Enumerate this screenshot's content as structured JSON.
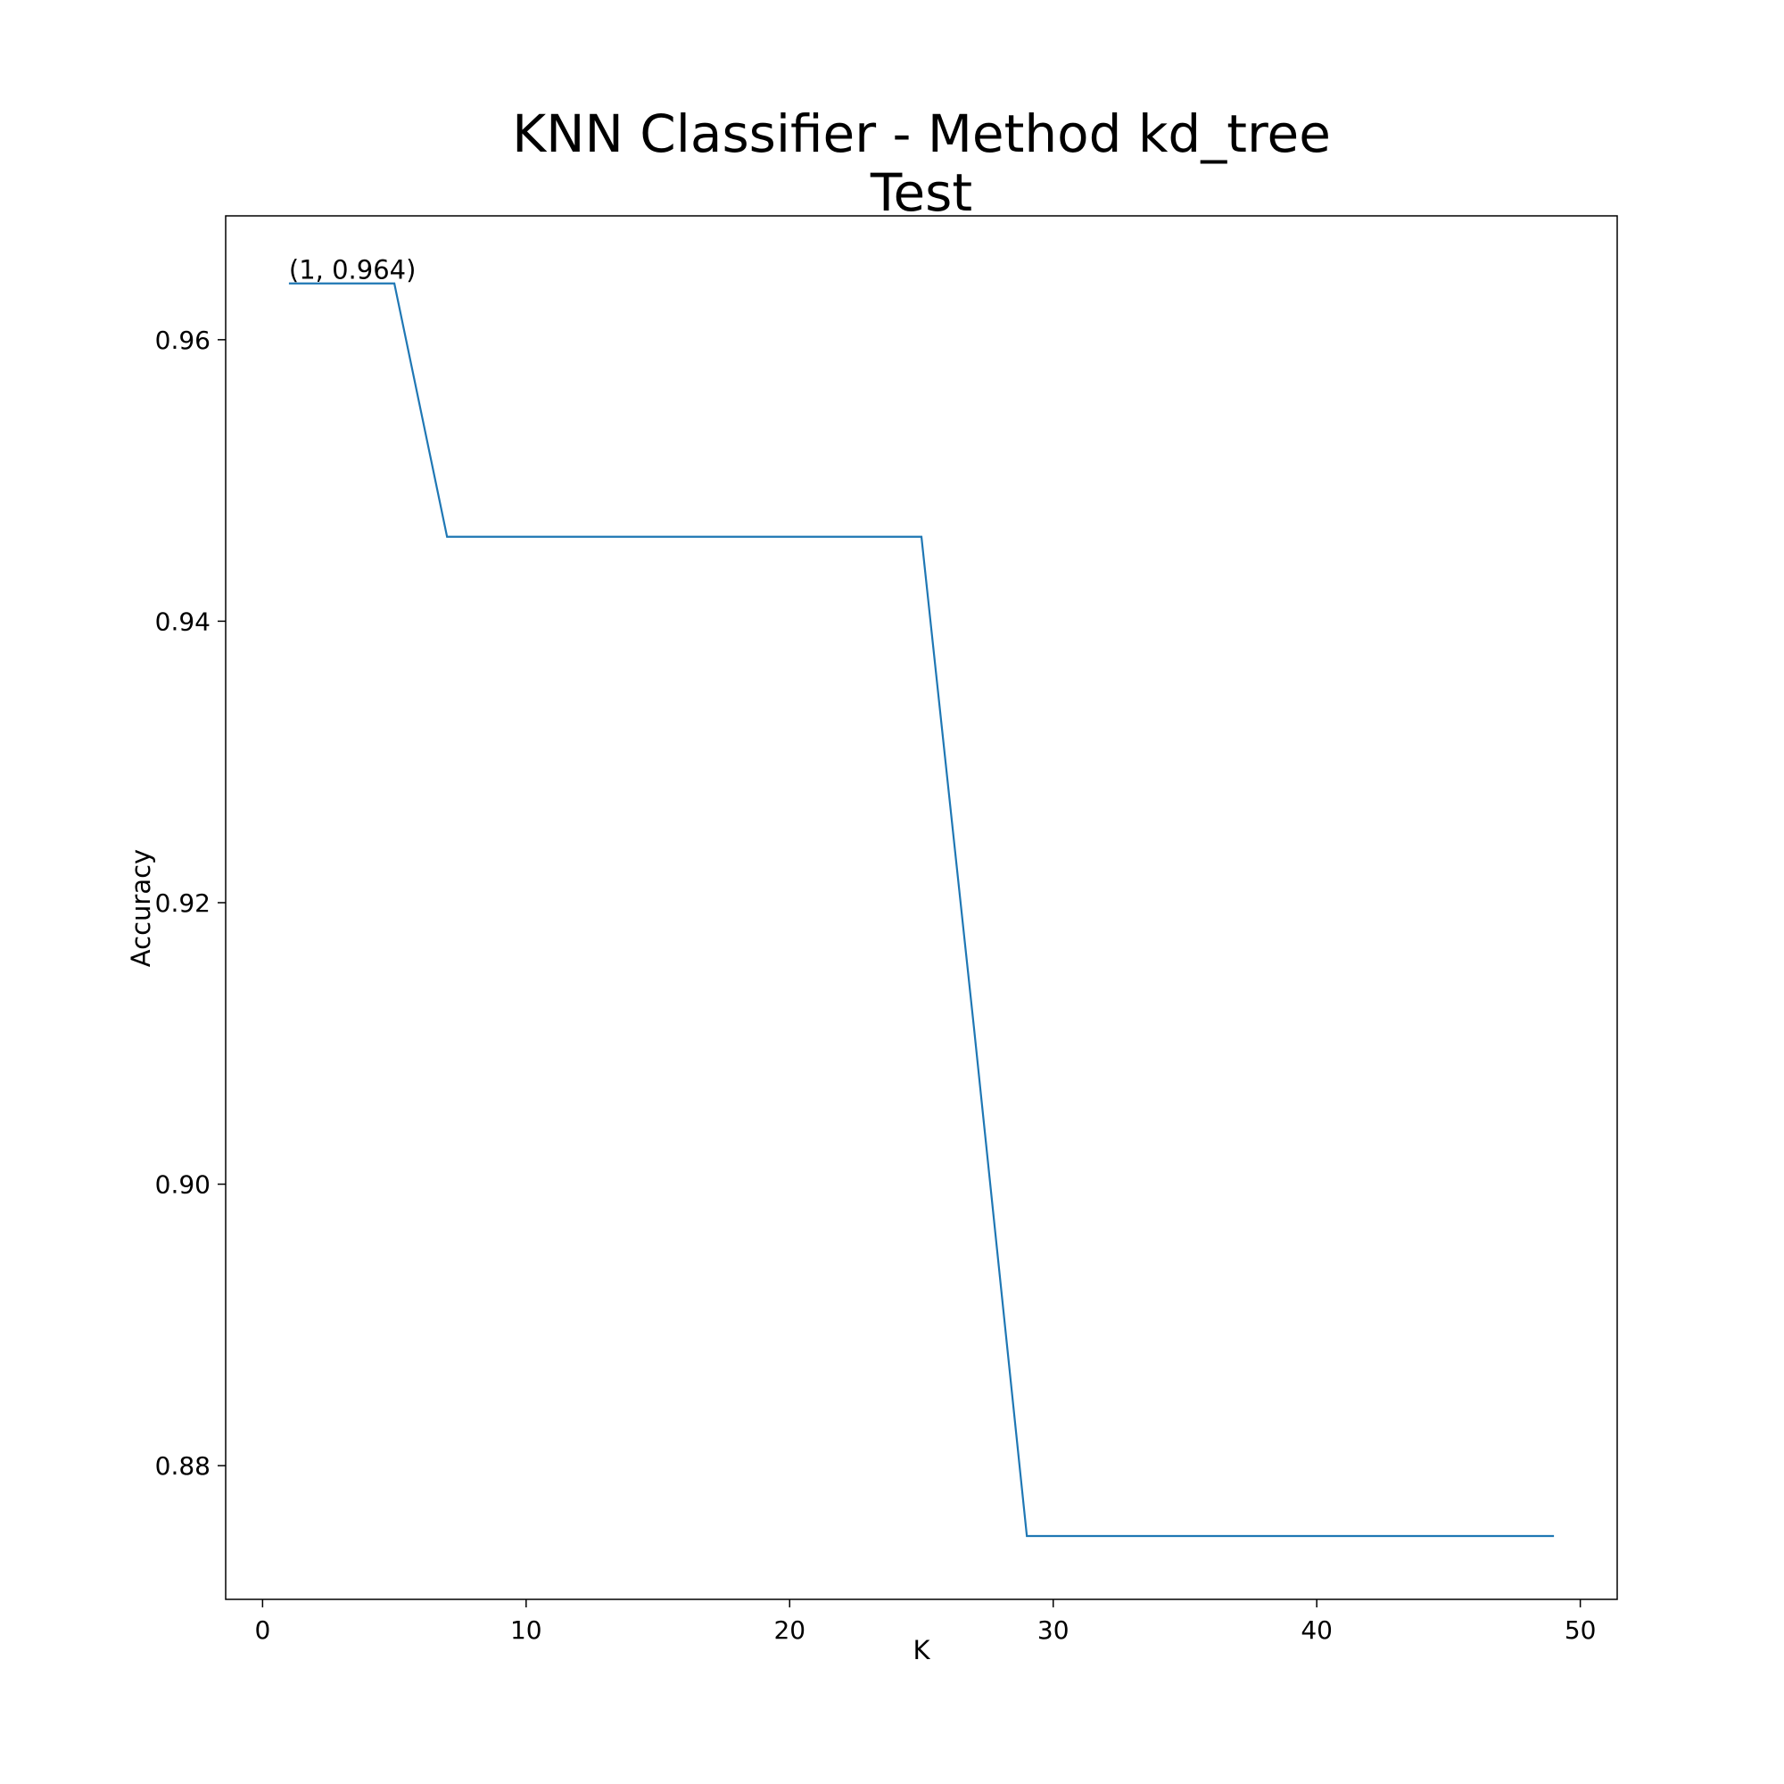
{
  "chart_data": {
    "type": "line",
    "title": "KNN Classifier - Method kd_tree",
    "subtitle": "Test",
    "xlabel": "K",
    "ylabel": "Accuracy",
    "xlim": [
      -1.4,
      51.4
    ],
    "ylim": [
      0.8705,
      0.9688
    ],
    "xticks": [
      0,
      10,
      20,
      30,
      40,
      50
    ],
    "xtick_labels": [
      "0",
      "10",
      "20",
      "30",
      "40",
      "50"
    ],
    "yticks": [
      0.88,
      0.9,
      0.92,
      0.94,
      0.96
    ],
    "ytick_labels": [
      "0.88",
      "0.90",
      "0.92",
      "0.94",
      "0.96"
    ],
    "grid": false,
    "series": [
      {
        "color": "#1f77b4",
        "x": [
          1,
          3,
          5,
          7,
          9,
          11,
          13,
          15,
          17,
          19,
          21,
          23,
          25,
          27,
          29,
          31,
          33,
          35,
          37,
          39,
          41,
          43,
          45,
          47,
          49
        ],
        "y": [
          0.964,
          0.964,
          0.964,
          0.946,
          0.946,
          0.946,
          0.946,
          0.946,
          0.946,
          0.946,
          0.946,
          0.946,
          0.946,
          0.911,
          0.875,
          0.875,
          0.875,
          0.875,
          0.875,
          0.875,
          0.875,
          0.875,
          0.875,
          0.875,
          0.875
        ]
      }
    ],
    "annotations": [
      {
        "text": "(1, 0.964)",
        "x": 1,
        "y": 0.964
      }
    ]
  }
}
